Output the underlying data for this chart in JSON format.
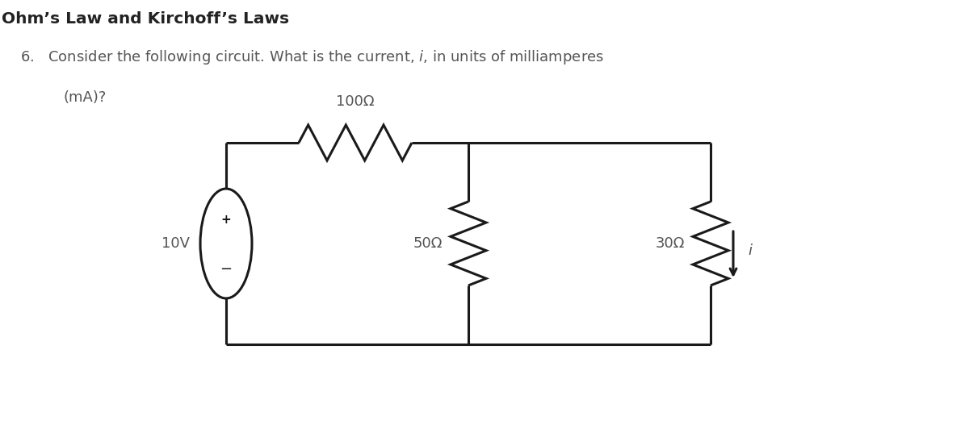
{
  "title": "Ohm’s Law and Kirchoff’s Laws",
  "q_num": "6.",
  "q_line1": "Consider the following circuit. What is the current, ",
  "q_italic": "i",
  "q_line1b": ", in units of milliamperes",
  "q_line2": "(mA)?",
  "voltage_label": "10V",
  "r1_label": "100Ω",
  "r2_label": "50Ω",
  "r3_label": "30Ω",
  "current_label": "i",
  "bg_color": "#ffffff",
  "line_color": "#1a1a1a",
  "text_color": "#555555",
  "title_color": "#222222",
  "lw": 2.2
}
